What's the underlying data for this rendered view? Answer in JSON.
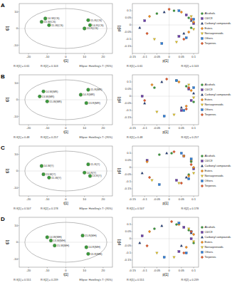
{
  "chart_data": [
    {
      "type": "scatter",
      "title": "A",
      "x_label": "t[1]",
      "y_label": "t[2]",
      "xlim": [
        -25,
        25
      ],
      "xticks": [
        -20,
        -10,
        0,
        10,
        20
      ],
      "ylim": [
        -15,
        15
      ],
      "yticks": [
        -10,
        0,
        10
      ],
      "grid": false,
      "ellipse_radii": [
        22,
        12
      ],
      "annotations": [
        "R²X[1] = 0.61",
        "R²X[2] = 0.103",
        "Ellipse: Hotelling's T² (95%)"
      ],
      "series": [
        {
          "color": "#3c9a3c",
          "marker": "circle",
          "x": [
            -11,
            -13,
            -9,
            12,
            13,
            10
          ],
          "values": [
            6,
            4,
            2,
            5,
            2,
            0
          ],
          "labels": [
            "14-W(CS)",
            "13-W(CS)",
            "15-W(CS)",
            "15-R(CS)",
            "14-R(CS)",
            "13-R(CS)"
          ]
        }
      ]
    },
    {
      "type": "scatter",
      "x_label": "p[1]",
      "y_label": "p[2]",
      "legend": "right",
      "xlim": [
        -0.15,
        0.12
      ],
      "xticks": [
        -0.15,
        -0.1,
        -0.05,
        0,
        0.05,
        0.1
      ],
      "ylim": [
        -0.2,
        0.15
      ],
      "yticks": [
        -0.15,
        -0.1,
        -0.05,
        0,
        0.05,
        0.1
      ],
      "grid": false,
      "annotations": [
        "R²X[1] = 0.61",
        "R²X[2] = 0.103"
      ],
      "series": [
        {
          "name": "Alcohols",
          "color": "#3c9a3c",
          "marker": "circle",
          "x": [
            0.08,
            0.09,
            -0.05,
            0.02
          ],
          "values": [
            0.05,
            -0.02,
            0.08,
            0.1
          ]
        },
        {
          "name": "C6/C9",
          "color": "#6a3fa8",
          "marker": "square",
          "x": [
            0.07,
            -0.1,
            0.1,
            0.04
          ],
          "values": [
            0.07,
            0.03,
            0.01,
            -0.08
          ]
        },
        {
          "name": "Carbonyl compounds",
          "color": "#1f3a7a",
          "marker": "triangle",
          "x": [
            0.06,
            0.09,
            -0.02,
            -0.12
          ],
          "values": [
            -0.06,
            0.03,
            0.09,
            -0.02
          ]
        },
        {
          "name": "Esters",
          "color": "#f08c1e",
          "marker": "diamond",
          "x": [
            0.1,
            0.05,
            0.08,
            -0.08
          ],
          "values": [
            0.02,
            0.09,
            -0.05,
            0.06
          ]
        },
        {
          "name": "Norisoprenoids",
          "color": "#e8c81e",
          "marker": "triangle-down",
          "x": [
            -0.06,
            0.03,
            0.09,
            0.1
          ],
          "values": [
            -0.1,
            -0.12,
            0.06,
            -0.03
          ]
        },
        {
          "name": "Others",
          "color": "#2f7ed8",
          "marker": "square",
          "x": [
            0.04,
            -0.03,
            0.07,
            0.1
          ],
          "values": [
            0.1,
            -0.13,
            -0.09,
            0.04
          ]
        },
        {
          "name": "Terpenes",
          "color": "#e0582a",
          "marker": "diamond",
          "x": [
            0.09,
            0.06,
            -0.09,
            0.0
          ],
          "values": [
            0.04,
            -0.1,
            -0.06,
            0.11
          ]
        }
      ]
    },
    {
      "type": "scatter",
      "title": "B",
      "x_label": "t[1]",
      "y_label": "t[2]",
      "xlim": [
        -25,
        25
      ],
      "xticks": [
        -20,
        -10,
        0,
        10,
        20
      ],
      "ylim": [
        -15,
        15
      ],
      "yticks": [
        -10,
        0,
        10
      ],
      "grid": false,
      "ellipse_radii": [
        22,
        12
      ],
      "annotations": [
        "R²X[1] = 0.48",
        "R²X[2] = 0.257",
        "Ellipse: Hotelling's T² (95%)"
      ],
      "series": [
        {
          "color": "#3c9a3c",
          "marker": "circle",
          "x": [
            -12,
            -14,
            -10,
            12,
            8,
            11
          ],
          "values": [
            5,
            2,
            -1,
            6,
            3,
            -2
          ],
          "labels": [
            "14-W(MR)",
            "13-W(MR)",
            "15-W(MR)",
            "15-R(MR)",
            "14-R(MR)",
            "13-R(MR)"
          ]
        }
      ]
    },
    {
      "type": "scatter",
      "x_label": "p[1]",
      "y_label": "p[2]",
      "legend": "right",
      "xlim": [
        -0.15,
        0.12
      ],
      "xticks": [
        -0.15,
        -0.1,
        -0.05,
        0,
        0.05,
        0.1
      ],
      "ylim": [
        -0.2,
        0.15
      ],
      "yticks": [
        -0.15,
        -0.1,
        -0.05,
        0,
        0.05,
        0.1
      ],
      "grid": false,
      "annotations": [
        "R²X[1] = 0.48",
        "R²X[2] = 0.257"
      ],
      "series": [
        {
          "name": "Alcohols",
          "color": "#3c9a3c",
          "marker": "circle",
          "x": [
            0.07,
            0.1,
            -0.06,
            0.03
          ],
          "values": [
            0.07,
            -0.04,
            0.06,
            0.11
          ]
        },
        {
          "name": "C6/C9",
          "color": "#6a3fa8",
          "marker": "square",
          "x": [
            0.08,
            -0.11,
            0.09,
            0.05
          ],
          "values": [
            0.05,
            0.0,
            -0.03,
            -0.1
          ]
        },
        {
          "name": "Carbonyl compounds",
          "color": "#1f3a7a",
          "marker": "triangle",
          "x": [
            0.05,
            0.1,
            -0.03,
            -0.1
          ],
          "values": [
            -0.08,
            0.02,
            0.1,
            -0.05
          ]
        },
        {
          "name": "Esters",
          "color": "#f08c1e",
          "marker": "diamond",
          "x": [
            0.09,
            0.04,
            0.07,
            -0.07
          ],
          "values": [
            0.04,
            0.1,
            -0.07,
            0.08
          ]
        },
        {
          "name": "Norisoprenoids",
          "color": "#e8c81e",
          "marker": "triangle-down",
          "x": [
            -0.05,
            0.02,
            0.08,
            0.1
          ],
          "values": [
            -0.11,
            -0.13,
            0.08,
            -0.01
          ]
        },
        {
          "name": "Others",
          "color": "#2f7ed8",
          "marker": "square",
          "x": [
            0.03,
            -0.02,
            0.06,
            0.1
          ],
          "values": [
            0.11,
            -0.14,
            -0.1,
            0.06
          ]
        },
        {
          "name": "Terpenes",
          "color": "#e0582a",
          "marker": "diamond",
          "x": [
            0.08,
            0.07,
            -0.1,
            -0.01
          ],
          "values": [
            0.06,
            -0.09,
            -0.03,
            0.12
          ]
        }
      ]
    },
    {
      "type": "scatter",
      "title": "C",
      "x_label": "t[1]",
      "y_label": "t[2]",
      "xlim": [
        -25,
        25
      ],
      "xticks": [
        -20,
        -10,
        0,
        10,
        20
      ],
      "ylim": [
        -15,
        15
      ],
      "yticks": [
        -10,
        0,
        10
      ],
      "grid": false,
      "ellipse_radii": [
        22,
        12
      ],
      "annotations": [
        "R²X[1] = 0.507",
        "R²X[2] = 0.178",
        "Ellipse: Hotelling's T² (95%)"
      ],
      "series": [
        {
          "color": "#3c9a3c",
          "marker": "circle",
          "x": [
            -13,
            -12,
            -9,
            12,
            10,
            13
          ],
          "values": [
            3,
            -2,
            -4,
            4,
            -1,
            -3
          ],
          "labels": [
            "14-W(Y)",
            "13-W(Y)",
            "15-W(Y)",
            "15-R(Y)",
            "14-R(Y)",
            "13-R(Y)"
          ]
        }
      ]
    },
    {
      "type": "scatter",
      "x_label": "p[1]",
      "y_label": "p[2]",
      "legend": "right",
      "xlim": [
        -0.15,
        0.12
      ],
      "xticks": [
        -0.15,
        -0.1,
        -0.05,
        0,
        0.05,
        0.1
      ],
      "ylim": [
        -0.2,
        0.15
      ],
      "yticks": [
        -0.15,
        -0.1,
        -0.05,
        0,
        0.05,
        0.1
      ],
      "grid": false,
      "annotations": [
        "R²X[1] = 0.507",
        "R²X[2] = 0.178"
      ],
      "series": [
        {
          "name": "Alcohols",
          "color": "#3c9a3c",
          "marker": "circle",
          "x": [
            0.09,
            0.08,
            -0.04,
            0.01
          ],
          "values": [
            0.04,
            -0.05,
            0.09,
            0.1
          ]
        },
        {
          "name": "C6/C9",
          "color": "#6a3fa8",
          "marker": "square",
          "x": [
            0.06,
            -0.09,
            0.1,
            0.03
          ],
          "values": [
            0.08,
            0.05,
            -0.01,
            -0.09
          ]
        },
        {
          "name": "Carbonyl compounds",
          "color": "#1f3a7a",
          "marker": "triangle",
          "x": [
            0.07,
            0.09,
            -0.01,
            -0.11
          ],
          "values": [
            -0.07,
            0.05,
            0.1,
            -0.04
          ]
        },
        {
          "name": "Esters",
          "color": "#f08c1e",
          "marker": "diamond",
          "x": [
            0.1,
            0.06,
            0.08,
            -0.09
          ],
          "values": [
            0.0,
            0.08,
            -0.06,
            0.04
          ]
        },
        {
          "name": "Norisoprenoids",
          "color": "#e8c81e",
          "marker": "triangle-down",
          "x": [
            -0.07,
            0.04,
            0.09,
            0.1
          ],
          "values": [
            -0.09,
            -0.11,
            0.05,
            -0.04
          ]
        },
        {
          "name": "Others",
          "color": "#2f7ed8",
          "marker": "square",
          "x": [
            0.05,
            -0.04,
            0.08,
            0.09
          ],
          "values": [
            0.1,
            -0.12,
            -0.08,
            0.06
          ]
        },
        {
          "name": "Terpenes",
          "color": "#e0582a",
          "marker": "diamond",
          "x": [
            0.09,
            0.05,
            -0.08,
            0.02
          ],
          "values": [
            0.02,
            -0.11,
            -0.07,
            0.11
          ]
        }
      ]
    },
    {
      "type": "scatter",
      "title": "D",
      "x_label": "t[1]",
      "y_label": "t[2]",
      "xlim": [
        -25,
        25
      ],
      "xticks": [
        -20,
        -10,
        0,
        10,
        20
      ],
      "ylim": [
        -15,
        15
      ],
      "yticks": [
        -10,
        0,
        10
      ],
      "grid": false,
      "ellipse_radii": [
        22,
        12
      ],
      "annotations": [
        "R²X[1] = 0.551",
        "R²X[2] = 0.239",
        "Ellipse: Hotelling's T² (95%)"
      ],
      "series": [
        {
          "color": "#3c9a3c",
          "marker": "circle",
          "x": [
            -10,
            -8,
            -6,
            9,
            11,
            12
          ],
          "values": [
            3,
            1,
            -2,
            4,
            -3,
            -7
          ],
          "labels": [
            "14-W(MH)",
            "13-W(MH)",
            "15-W(MH)",
            "15-R(MH)",
            "14-R(MH)",
            "13-R(MH)"
          ]
        }
      ]
    },
    {
      "type": "scatter",
      "x_label": "p[1]",
      "y_label": "p[2]",
      "legend": "right",
      "xlim": [
        -0.15,
        0.12
      ],
      "xticks": [
        -0.15,
        -0.1,
        -0.05,
        0,
        0.05,
        0.1
      ],
      "ylim": [
        -0.2,
        0.15
      ],
      "yticks": [
        -0.15,
        -0.1,
        -0.05,
        0,
        0.05,
        0.1
      ],
      "grid": false,
      "annotations": [
        "R²X[1] = 0.551",
        "R²X[2] = 0.239"
      ],
      "series": [
        {
          "name": "Alcohols",
          "color": "#3c9a3c",
          "marker": "circle",
          "x": [
            0.08,
            0.1,
            -0.06,
            0.03
          ],
          "values": [
            0.06,
            -0.03,
            0.07,
            0.1
          ]
        },
        {
          "name": "C6/C9",
          "color": "#6a3fa8",
          "marker": "square",
          "x": [
            0.06,
            -0.11,
            0.09,
            0.04
          ],
          "values": [
            0.08,
            0.02,
            0.0,
            -0.09
          ]
        },
        {
          "name": "Carbonyl compounds",
          "color": "#1f3a7a",
          "marker": "triangle",
          "x": [
            0.05,
            0.09,
            -0.03,
            -0.12
          ],
          "values": [
            -0.05,
            0.04,
            0.09,
            -0.03
          ]
        },
        {
          "name": "Esters",
          "color": "#f08c1e",
          "marker": "diamond",
          "x": [
            0.1,
            0.04,
            0.07,
            -0.08
          ],
          "values": [
            0.03,
            0.1,
            -0.06,
            0.05
          ]
        },
        {
          "name": "Norisoprenoids",
          "color": "#e8c81e",
          "marker": "triangle-down",
          "x": [
            -0.05,
            0.02,
            0.08,
            0.1
          ],
          "values": [
            -0.1,
            -0.13,
            0.07,
            -0.02
          ]
        },
        {
          "name": "Others",
          "color": "#2f7ed8",
          "marker": "square",
          "x": [
            0.04,
            -0.02,
            0.07,
            0.09
          ],
          "values": [
            0.11,
            -0.13,
            -0.1,
            0.05
          ]
        },
        {
          "name": "Terpenes",
          "color": "#e0582a",
          "marker": "diamond",
          "x": [
            0.09,
            0.06,
            -0.09,
            0.01
          ],
          "values": [
            0.05,
            -0.1,
            -0.05,
            0.12
          ]
        }
      ]
    }
  ]
}
